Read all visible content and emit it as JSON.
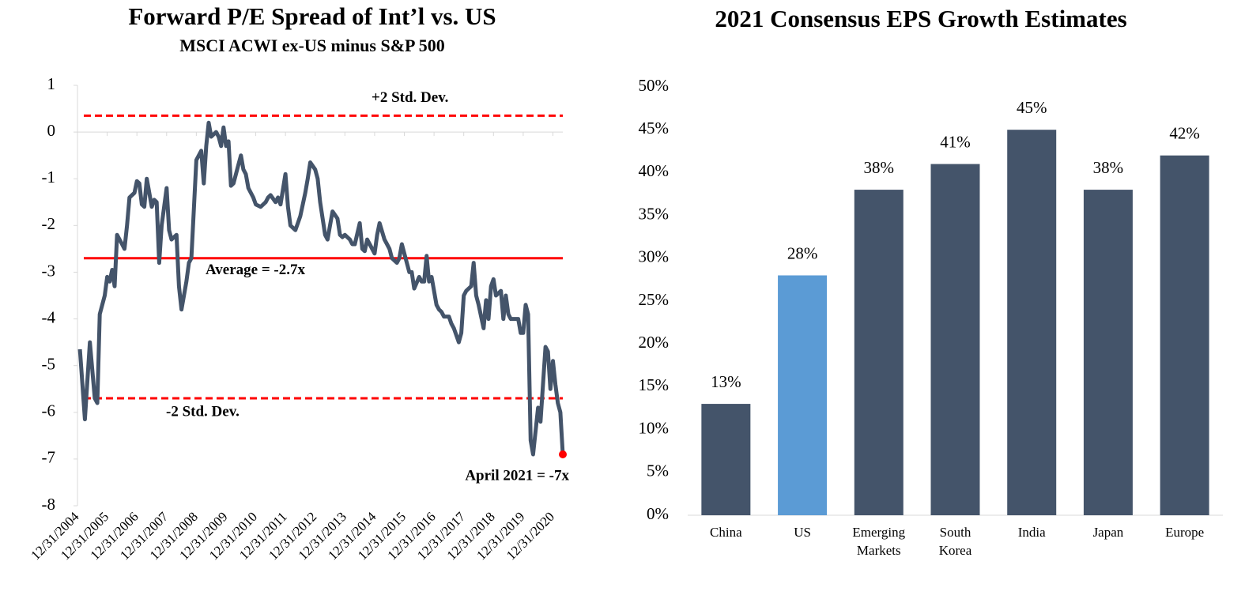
{
  "chart_data": [
    {
      "type": "line",
      "title": "Forward P/E Spread of Int’l vs. US",
      "subtitle": "MSCI ACWI ex-US minus S&P 500",
      "x": [
        "2005-01",
        "2005-03",
        "2005-05",
        "2005-07",
        "2005-08",
        "2005-09",
        "2005-11",
        "2005-12",
        "2006-01",
        "2006-02",
        "2006-03",
        "2006-04",
        "2006-06",
        "2006-07",
        "2006-08",
        "2006-09",
        "2006-11",
        "2006-12",
        "2007-01",
        "2007-02",
        "2007-03",
        "2007-04",
        "2007-06",
        "2007-07",
        "2007-08",
        "2007-09",
        "2007-10",
        "2007-12",
        "2008-01",
        "2008-02",
        "2008-04",
        "2008-05",
        "2008-06",
        "2008-08",
        "2008-09",
        "2008-10",
        "2008-12",
        "2009-01",
        "2009-02",
        "2009-03",
        "2009-04",
        "2009-05",
        "2009-06",
        "2009-08",
        "2009-09",
        "2009-10",
        "2009-11",
        "2009-12",
        "2010-01",
        "2010-02",
        "2010-03",
        "2010-05",
        "2010-06",
        "2010-07",
        "2010-08",
        "2010-09",
        "2010-11",
        "2010-12",
        "2011-02",
        "2011-04",
        "2011-05",
        "2011-06",
        "2011-08",
        "2011-09",
        "2011-10",
        "2011-12",
        "2012-01",
        "2012-02",
        "2012-04",
        "2012-05",
        "2012-06",
        "2012-08",
        "2012-09",
        "2012-10",
        "2012-12",
        "2013-01",
        "2013-02",
        "2013-04",
        "2013-05",
        "2013-06",
        "2013-07",
        "2013-09",
        "2013-10",
        "2013-11",
        "2013-12",
        "2014-02",
        "2014-03",
        "2014-04",
        "2014-06",
        "2014-07",
        "2014-08",
        "2014-09",
        "2014-10",
        "2014-12",
        "2015-01",
        "2015-02",
        "2015-04",
        "2015-05",
        "2015-06",
        "2015-07",
        "2015-09",
        "2015-10",
        "2015-11",
        "2015-12",
        "2016-02",
        "2016-03",
        "2016-04",
        "2016-06",
        "2016-07",
        "2016-08",
        "2016-09",
        "2016-10",
        "2016-11",
        "2017-01",
        "2017-02",
        "2017-03",
        "2017-04",
        "2017-06",
        "2017-07",
        "2017-08",
        "2017-10",
        "2017-11",
        "2017-12",
        "2018-01",
        "2018-03",
        "2018-04",
        "2018-05",
        "2018-06",
        "2018-08",
        "2018-09",
        "2018-10",
        "2018-11",
        "2018-12",
        "2019-01",
        "2019-03",
        "2019-04",
        "2019-05",
        "2019-06",
        "2019-07",
        "2019-09",
        "2019-10",
        "2019-11",
        "2019-12",
        "2020-01",
        "2020-02",
        "2020-03",
        "2020-04",
        "2020-06",
        "2020-07",
        "2020-09",
        "2020-10",
        "2020-11",
        "2020-12",
        "2021-01",
        "2021-02",
        "2021-03",
        "2021-04"
      ],
      "series": [
        {
          "color": "#44546a",
          "values": [
            -4.65,
            -6.15,
            -4.5,
            -5.7,
            -5.8,
            -3.9,
            -3.5,
            -3.1,
            -3.2,
            -2.95,
            -3.3,
            -2.2,
            -2.4,
            -2.5,
            -2.0,
            -1.4,
            -1.3,
            -1.05,
            -1.1,
            -1.55,
            -1.6,
            -1.0,
            -1.6,
            -1.45,
            -1.5,
            -2.8,
            -2.0,
            -1.2,
            -2.1,
            -2.3,
            -2.2,
            -3.3,
            -3.8,
            -3.2,
            -2.8,
            -2.7,
            -0.6,
            -0.5,
            -0.4,
            -1.1,
            -0.3,
            0.2,
            -0.1,
            0.0,
            -0.1,
            -0.3,
            0.1,
            -0.3,
            -0.2,
            -1.15,
            -1.1,
            -0.7,
            -0.5,
            -0.8,
            -0.9,
            -1.2,
            -1.4,
            -1.55,
            -1.6,
            -1.5,
            -1.4,
            -1.35,
            -1.5,
            -1.4,
            -1.55,
            -0.9,
            -1.6,
            -2.0,
            -2.1,
            -1.95,
            -1.8,
            -1.3,
            -1.0,
            -0.65,
            -0.8,
            -1.0,
            -1.5,
            -2.2,
            -2.3,
            -2.0,
            -1.7,
            -1.85,
            -2.2,
            -2.25,
            -2.2,
            -2.3,
            -2.4,
            -2.4,
            -1.95,
            -2.5,
            -2.55,
            -2.3,
            -2.4,
            -2.6,
            -2.2,
            -1.95,
            -2.3,
            -2.4,
            -2.5,
            -2.7,
            -2.8,
            -2.7,
            -2.4,
            -2.6,
            -3.0,
            -3.0,
            -3.35,
            -3.1,
            -3.2,
            -3.2,
            -2.65,
            -3.2,
            -3.1,
            -3.7,
            -3.8,
            -3.85,
            -3.95,
            -3.95,
            -4.1,
            -4.2,
            -4.5,
            -4.3,
            -3.5,
            -3.4,
            -3.3,
            -2.8,
            -3.5,
            -3.7,
            -4.2,
            -3.6,
            -4.0,
            -3.3,
            -3.15,
            -3.5,
            -3.4,
            -4.0,
            -3.5,
            -3.9,
            -4.0,
            -4.0,
            -4.0,
            -4.3,
            -4.3,
            -3.7,
            -3.9,
            -6.6,
            -6.9,
            -5.9,
            -6.2,
            -4.6,
            -4.7,
            -5.5,
            -4.9,
            -5.4,
            -5.8,
            -6.0,
            -6.9
          ]
        }
      ],
      "xlim": [
        "2004-12",
        "2021-04"
      ],
      "xticks": [
        {
          "value": "2004-12",
          "label": "12/31/2004"
        },
        {
          "value": "2005-12",
          "label": "12/31/2005"
        },
        {
          "value": "2006-12",
          "label": "12/31/2006"
        },
        {
          "value": "2007-12",
          "label": "12/31/2007"
        },
        {
          "value": "2008-12",
          "label": "12/31/2008"
        },
        {
          "value": "2009-12",
          "label": "12/31/2009"
        },
        {
          "value": "2010-12",
          "label": "12/31/2010"
        },
        {
          "value": "2011-12",
          "label": "12/31/2011"
        },
        {
          "value": "2012-12",
          "label": "12/31/2012"
        },
        {
          "value": "2013-12",
          "label": "12/31/2013"
        },
        {
          "value": "2014-12",
          "label": "12/31/2014"
        },
        {
          "value": "2015-12",
          "label": "12/31/2015"
        },
        {
          "value": "2016-12",
          "label": "12/31/2016"
        },
        {
          "value": "2017-12",
          "label": "12/31/2017"
        },
        {
          "value": "2018-12",
          "label": "12/31/2018"
        },
        {
          "value": "2019-12",
          "label": "12/31/2019"
        },
        {
          "value": "2020-12",
          "label": "12/31/2020"
        }
      ],
      "ylim": [
        -8,
        1
      ],
      "yticks": [
        -8,
        -7,
        -6,
        -5,
        -4,
        -3,
        -2,
        -1,
        0,
        1
      ],
      "reference_lines": [
        {
          "value": 0.35,
          "label": "+2 Std. Dev.",
          "style": "dashed",
          "color": "#ff0000"
        },
        {
          "value": -2.7,
          "label": "Average = -2.7x",
          "style": "solid",
          "color": "#ff0000"
        },
        {
          "value": -5.7,
          "label": "-2 Std. Dev.",
          "style": "dashed",
          "color": "#ff0000"
        }
      ],
      "annotations": [
        {
          "text": "April 2021 = -7x",
          "x": "2021-04",
          "y": -6.9,
          "color": "#ff0000"
        }
      ]
    },
    {
      "type": "bar",
      "title": "2021 Consensus EPS Growth Estimates",
      "categories": [
        "China",
        "US",
        "Emerging Markets",
        "South Korea",
        "India",
        "Japan",
        "Europe"
      ],
      "values": [
        13,
        28,
        38,
        41,
        45,
        38,
        42
      ],
      "value_labels": [
        "13%",
        "28%",
        "38%",
        "41%",
        "45%",
        "38%",
        "42%"
      ],
      "colors": [
        "#44546a",
        "#5b9bd5",
        "#44546a",
        "#44546a",
        "#44546a",
        "#44546a",
        "#44546a"
      ],
      "ylim": [
        0,
        50
      ],
      "yticks": [
        {
          "value": 0,
          "label": "0%"
        },
        {
          "value": 5,
          "label": "5%"
        },
        {
          "value": 10,
          "label": "10%"
        },
        {
          "value": 15,
          "label": "15%"
        },
        {
          "value": 20,
          "label": "20%"
        },
        {
          "value": 25,
          "label": "25%"
        },
        {
          "value": 30,
          "label": "30%"
        },
        {
          "value": 35,
          "label": "35%"
        },
        {
          "value": 40,
          "label": "40%"
        },
        {
          "value": 45,
          "label": "45%"
        },
        {
          "value": 50,
          "label": "50%"
        }
      ]
    }
  ]
}
